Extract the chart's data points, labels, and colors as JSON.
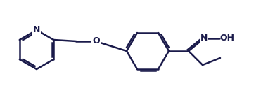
{
  "bg_color": "#ffffff",
  "line_color": "#1a1a4a",
  "line_width": 1.8,
  "font_size": 9,
  "atoms": {
    "N_label": "N",
    "O_label": "O",
    "OH_label": "OH",
    "N_oxime": "N"
  }
}
